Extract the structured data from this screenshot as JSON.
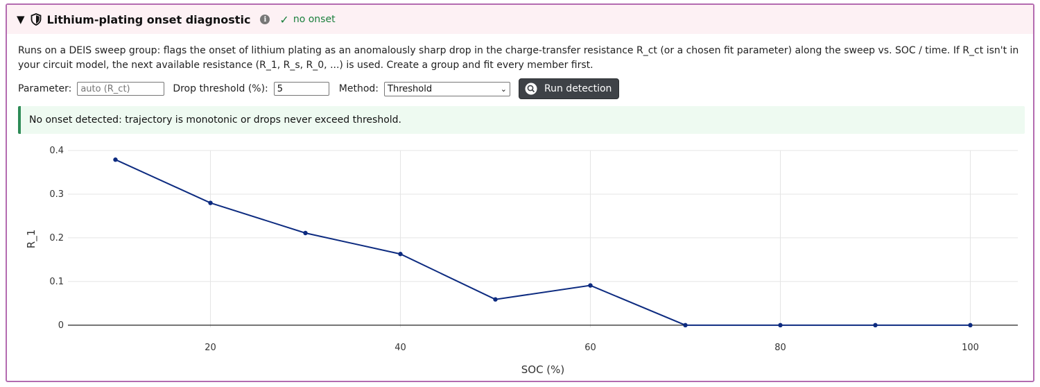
{
  "header": {
    "title": "Lithium-plating onset diagnostic",
    "status_text": "no onset",
    "info_icon": "info-icon",
    "shield_icon": "shield-icon",
    "status_color": "#1a7f3c"
  },
  "description": "Runs on a DEIS sweep group: flags the onset of lithium plating as an anomalously sharp drop in the charge-transfer resistance R_ct (or a chosen fit parameter) along the sweep vs. SOC / time. If R_ct isn't in your circuit model, the next available resistance (R_1, R_s, R_0, ...) is used. Create a group and fit every member first.",
  "controls": {
    "parameter_label": "Parameter:",
    "parameter_placeholder": "auto (R_ct)",
    "threshold_label": "Drop threshold (%):",
    "threshold_value": "5",
    "method_label": "Method:",
    "method_value": "Threshold",
    "run_label": "Run detection"
  },
  "alert": {
    "text": "No onset detected: trajectory is monotonic or drops never exceed threshold."
  },
  "chart_data": {
    "type": "line",
    "title": "",
    "xlabel": "SOC (%)",
    "ylabel": "R_1",
    "x": [
      10,
      20,
      30,
      40,
      50,
      60,
      70,
      80,
      90,
      100
    ],
    "series": [
      {
        "values": [
          0.379,
          0.28,
          0.211,
          0.163,
          0.059,
          0.091,
          0.0,
          0.0,
          0.0,
          0.0
        ],
        "color": "#0d2b80"
      }
    ],
    "x_ticks": [
      20,
      40,
      60,
      80,
      100
    ],
    "y_ticks": [
      0,
      0.1,
      0.2,
      0.3,
      0.4
    ],
    "y_tick_labels": [
      "0",
      "0.1",
      "0.2",
      "0.3",
      "0.4"
    ],
    "xlim": [
      5,
      105
    ],
    "ylim": [
      -0.005,
      0.4
    ],
    "grid": true
  }
}
